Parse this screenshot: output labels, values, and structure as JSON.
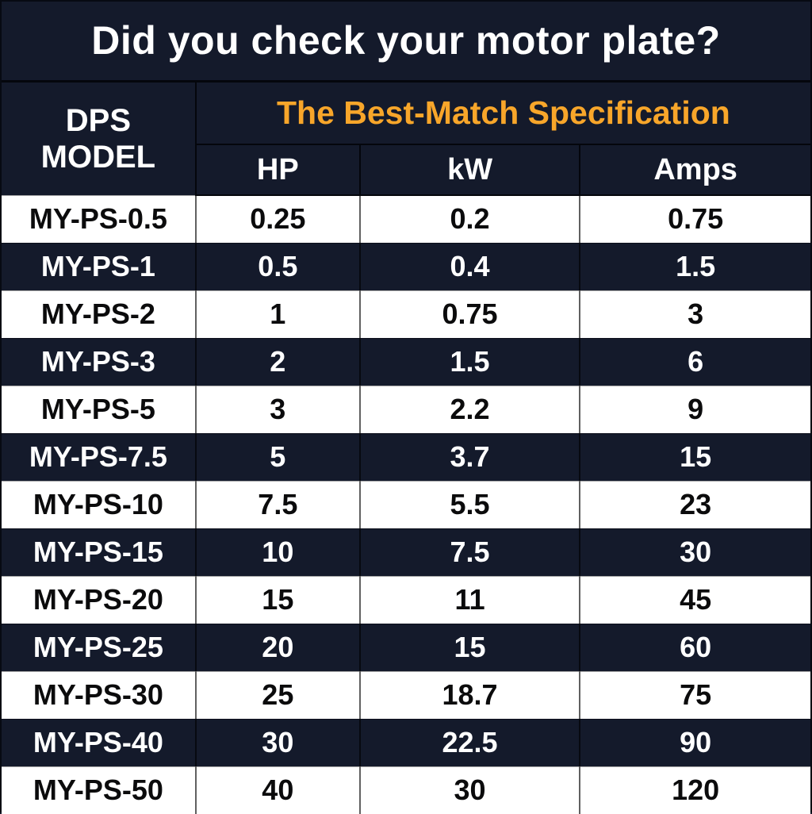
{
  "colors": {
    "navy_background": "#141a2b",
    "accent_orange": "#f8a62a",
    "row_light": "#ffffff",
    "text_dark": "#0b0b0c",
    "text_light": "#ffffff"
  },
  "chart_data": {
    "type": "table",
    "title": "Did you check your motor plate?",
    "model_header": "DPS\nMODEL",
    "spec_header": "The Best-Match Specification",
    "columns": [
      "HP",
      "kW",
      "Amps"
    ],
    "rows": [
      {
        "model": "MY-PS-0.5",
        "hp": "0.25",
        "kw": "0.2",
        "amps": "0.75"
      },
      {
        "model": "MY-PS-1",
        "hp": "0.5",
        "kw": "0.4",
        "amps": "1.5"
      },
      {
        "model": "MY-PS-2",
        "hp": "1",
        "kw": "0.75",
        "amps": "3"
      },
      {
        "model": "MY-PS-3",
        "hp": "2",
        "kw": "1.5",
        "amps": "6"
      },
      {
        "model": "MY-PS-5",
        "hp": "3",
        "kw": "2.2",
        "amps": "9"
      },
      {
        "model": "MY-PS-7.5",
        "hp": "5",
        "kw": "3.7",
        "amps": "15"
      },
      {
        "model": "MY-PS-10",
        "hp": "7.5",
        "kw": "5.5",
        "amps": "23"
      },
      {
        "model": "MY-PS-15",
        "hp": "10",
        "kw": "7.5",
        "amps": "30"
      },
      {
        "model": "MY-PS-20",
        "hp": "15",
        "kw": "11",
        "amps": "45"
      },
      {
        "model": "MY-PS-25",
        "hp": "20",
        "kw": "15",
        "amps": "60"
      },
      {
        "model": "MY-PS-30",
        "hp": "25",
        "kw": "18.7",
        "amps": "75"
      },
      {
        "model": "MY-PS-40",
        "hp": "30",
        "kw": "22.5",
        "amps": "90"
      },
      {
        "model": "MY-PS-50",
        "hp": "40",
        "kw": "30",
        "amps": "120"
      }
    ]
  }
}
